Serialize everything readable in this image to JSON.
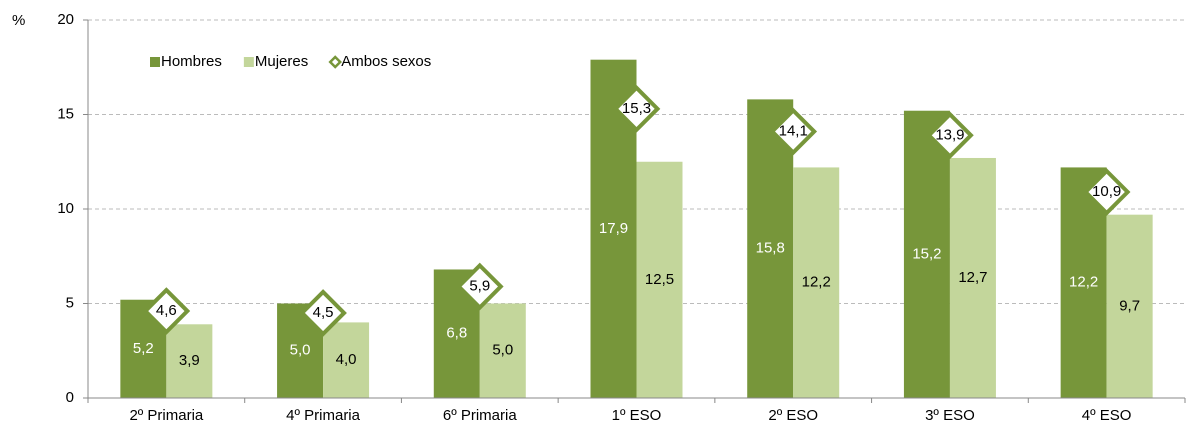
{
  "chart_data": {
    "type": "bar",
    "y_label": "%",
    "categories": [
      "2º Primaria",
      "4º Primaria",
      "6º Primaria",
      "1º ESO",
      "2º ESO",
      "3º ESO",
      "4º ESO"
    ],
    "series": [
      {
        "name": "Hombres",
        "color": "#77963a",
        "values": [
          5.2,
          5.0,
          6.8,
          17.9,
          15.8,
          15.2,
          12.2
        ],
        "value_labels": [
          "5,2",
          "5,0",
          "6,8",
          "17,9",
          "15,8",
          "15,2",
          "12,2"
        ]
      },
      {
        "name": "Mujeres",
        "color": "#c3d69b",
        "values": [
          3.9,
          4.0,
          5.0,
          12.5,
          12.2,
          12.7,
          9.7
        ],
        "value_labels": [
          "3,9",
          "4,0",
          "5,0",
          "12,5",
          "12,2",
          "12,7",
          "9,7"
        ]
      },
      {
        "name": "Ambos sexos",
        "color": "#77963a",
        "marker": "diamond",
        "values": [
          4.6,
          4.5,
          5.9,
          15.3,
          14.1,
          13.9,
          10.9
        ],
        "value_labels": [
          "4,6",
          "4,5",
          "5,9",
          "15,3",
          "14,1",
          "13,9",
          "10,9"
        ]
      }
    ],
    "ylim": [
      0,
      20
    ],
    "yticks": [
      0,
      5,
      10,
      15,
      20
    ],
    "grid": true,
    "legend": "upper left"
  }
}
